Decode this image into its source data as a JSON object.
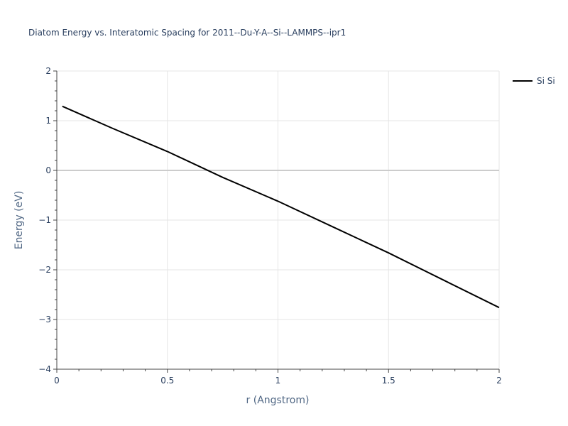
{
  "chart_data": {
    "type": "line",
    "title": "Diatom Energy vs. Interatomic Spacing for 2011--Du-Y-A--Si--LAMMPS--ipr1",
    "xlabel": "r (Angstrom)",
    "ylabel": "Energy (eV)",
    "xlim": [
      0,
      2
    ],
    "ylim": [
      -4,
      2
    ],
    "x_ticks": [
      0,
      0.5,
      1,
      1.5,
      2
    ],
    "x_tick_labels": [
      "0",
      "0.5",
      "1",
      "1.5",
      "2"
    ],
    "y_ticks": [
      -4,
      -3,
      -2,
      -1,
      0,
      1,
      2
    ],
    "y_tick_labels": [
      "−4",
      "−3",
      "−2",
      "−1",
      "0",
      "1",
      "2"
    ],
    "grid": true,
    "legend_position": "top-right",
    "series": [
      {
        "name": "Si Si",
        "color": "#000000",
        "x": [
          0.025,
          0.25,
          0.5,
          0.75,
          1.0,
          1.25,
          1.5,
          1.75,
          2.0
        ],
        "y": [
          1.29,
          0.85,
          0.38,
          -0.14,
          -0.62,
          -1.14,
          -1.66,
          -2.21,
          -2.76
        ]
      }
    ]
  }
}
